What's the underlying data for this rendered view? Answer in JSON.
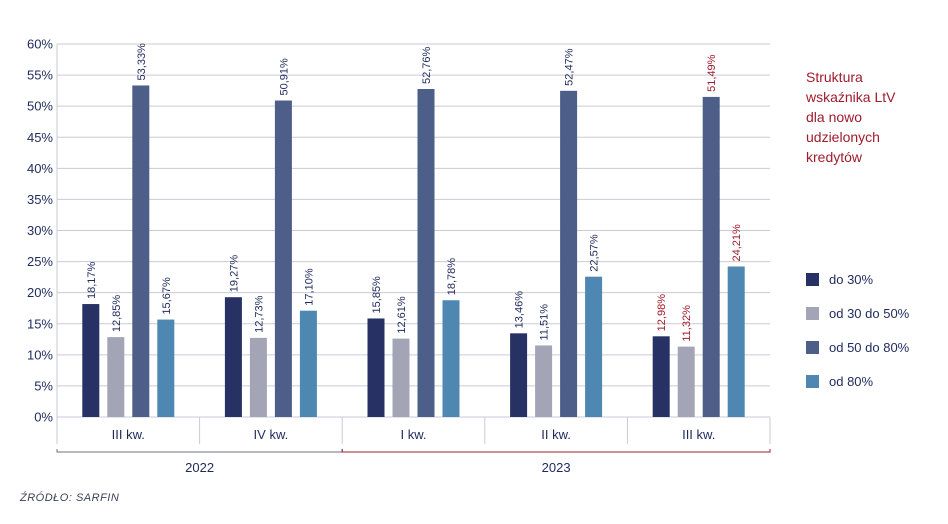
{
  "chart_data": {
    "type": "bar",
    "title_lines": [
      "Struktura",
      "wskaźnika LtV",
      "dla nowo",
      "udzielonych",
      "kredytów"
    ],
    "categories": [
      "III kw.",
      "IV kw.",
      "I kw.",
      "II kw.",
      "III kw."
    ],
    "groups": [
      {
        "label": "2022",
        "span": [
          0,
          1
        ]
      },
      {
        "label": "2023",
        "span": [
          2,
          4
        ]
      }
    ],
    "series": [
      {
        "name": "do 30%",
        "color": "#273163",
        "values": [
          18.17,
          19.27,
          15.85,
          13.46,
          12.98
        ],
        "labels": [
          "18,17%",
          "19,27%",
          "15,85%",
          "13,46%",
          "12,98%"
        ]
      },
      {
        "name": "od 30 do 50%",
        "color": "#a3a4b5",
        "values": [
          12.85,
          12.73,
          12.61,
          11.51,
          11.32
        ],
        "labels": [
          "12,85%",
          "12,73%",
          "12,61%",
          "11,51%",
          "11,32%"
        ]
      },
      {
        "name": "od 50 do 80%",
        "color": "#4d5e89",
        "values": [
          53.33,
          50.91,
          52.76,
          52.47,
          51.49
        ],
        "labels": [
          "53,33%",
          "50,91%",
          "52,76%",
          "52,47%",
          "51,49%"
        ]
      },
      {
        "name": "od 80%",
        "color": "#4d87b2",
        "values": [
          15.67,
          17.1,
          18.78,
          22.57,
          24.21
        ],
        "labels": [
          "15,67%",
          "17,10%",
          "18,78%",
          "22,57%",
          "24,21%"
        ]
      }
    ],
    "y_ticks": [
      "0%",
      "5%",
      "10%",
      "15%",
      "20%",
      "25%",
      "30%",
      "35%",
      "40%",
      "45%",
      "50%",
      "55%",
      "60%"
    ],
    "ylim": [
      0,
      60
    ],
    "grid": true,
    "legend_position": "right",
    "highlight_category": 4,
    "highlight_color": "#a01c2c",
    "text_color": "#1f2a5c",
    "grid_color": "#c9cbd6"
  },
  "source": "ŹRÓDŁO: SARFIN"
}
